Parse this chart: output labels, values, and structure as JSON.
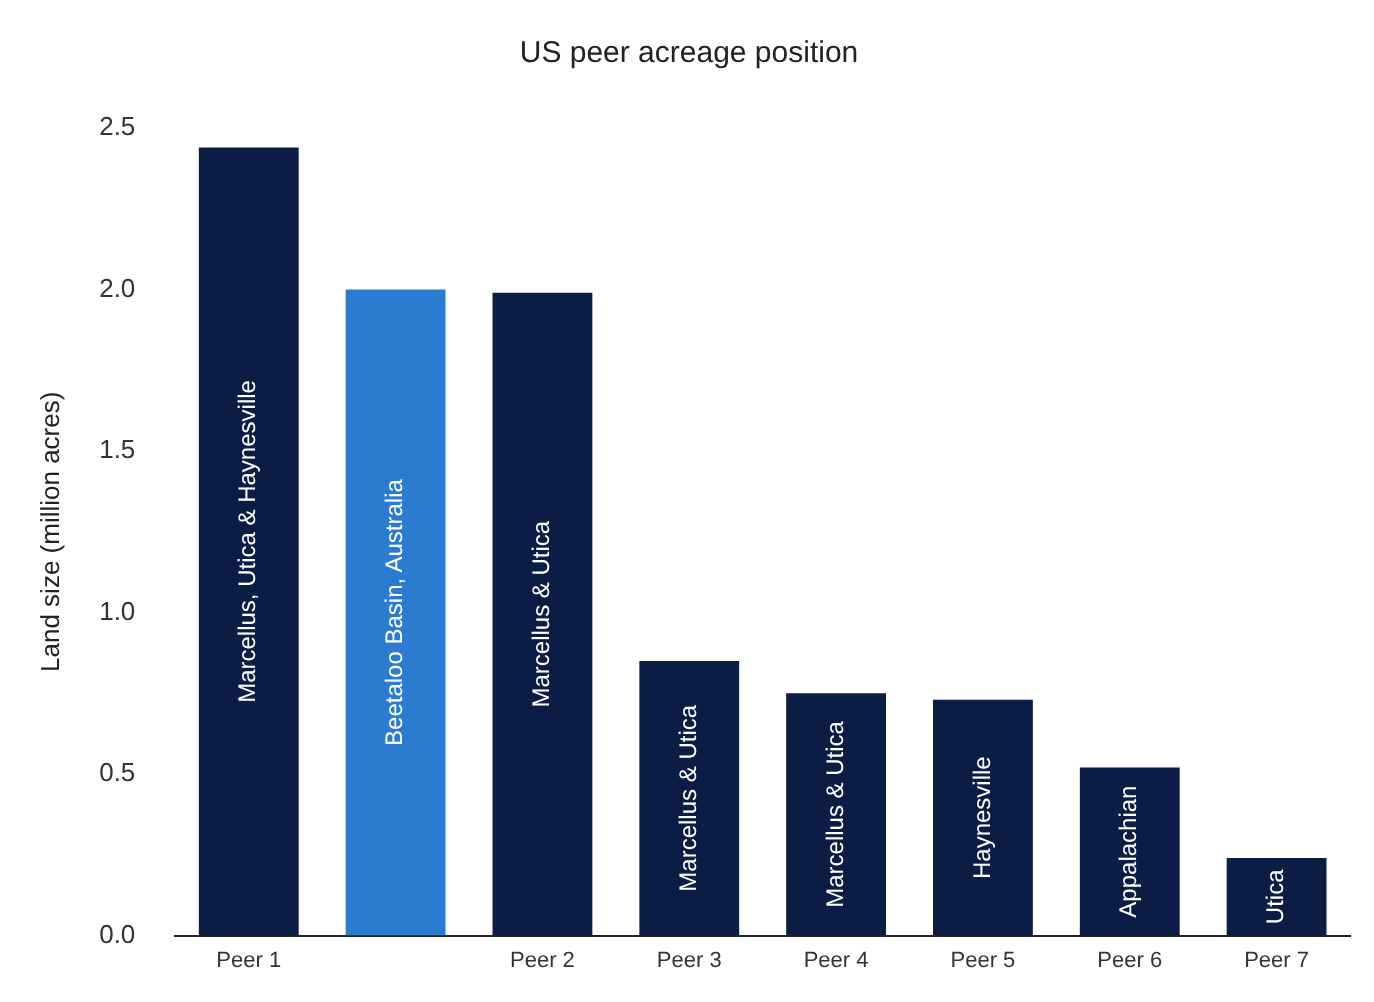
{
  "chart_data": {
    "type": "bar",
    "title": "US peer acreage position",
    "ylabel": "Land size (million acres)",
    "categories": [
      "Peer 1",
      null,
      "Peer 2",
      "Peer 3",
      "Peer 4",
      "Peer 5",
      "Peer 6",
      "Peer 7"
    ],
    "values": [
      2.44,
      2.0,
      1.99,
      0.85,
      0.75,
      0.73,
      0.52,
      0.24
    ],
    "colors": [
      "#0b1d45",
      "#2b7cd0",
      "#0b1d45",
      "#0b1d45",
      "#0b1d45",
      "#0b1d45",
      "#0b1d45",
      "#0b1d45"
    ],
    "ylim": [
      0,
      2.5
    ],
    "yticks": [
      {
        "value": 0,
        "label": "0.0"
      },
      {
        "value": 0.5,
        "label": "0.5"
      },
      {
        "value": 1,
        "label": "1.0"
      },
      {
        "value": 1.5,
        "label": "1.5"
      },
      {
        "value": 2,
        "label": "2.0"
      },
      {
        "value": 2.5,
        "label": "2.5"
      }
    ],
    "annotations": [
      "Marcellus, Utica & Haynesville",
      "Beetaloo Basin, Australia",
      "Marcellus & Utica",
      "Marcellus & Utica",
      "Marcellus & Utica",
      "Haynesville",
      "Appalachian",
      "Utica"
    ],
    "grid": false,
    "legend": false
  }
}
